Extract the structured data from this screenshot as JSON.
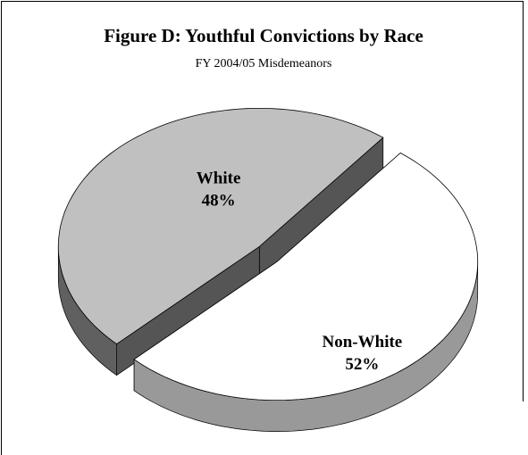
{
  "chart_data": {
    "type": "pie",
    "title": "Figure D:  Youthful Convictions by Race",
    "subtitle": "FY 2004/05 Misdemeanors",
    "categories": [
      "White",
      "Non-White"
    ],
    "values": [
      48,
      52
    ],
    "value_labels": [
      "48%",
      "52%"
    ],
    "colors": [
      "#c0c0c0",
      "#ffffff"
    ],
    "side_colors": [
      "#606060",
      "#999999"
    ],
    "three_d": true,
    "exploded": true
  }
}
